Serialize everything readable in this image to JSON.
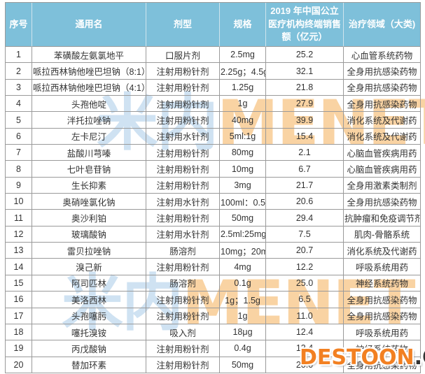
{
  "chart_data": {
    "type": "table",
    "title": "2019 年中国公立医疗机构终端销售额药品表",
    "columns": [
      "序号",
      "通用名",
      "剂型",
      "规格",
      "2019 年中国公立医疗机构终端销售额（亿元）",
      "治疗领域（大类)"
    ],
    "rows": [
      {
        "no": "1",
        "name": "苯磺酸左氨氯地平",
        "form": "口服片剂",
        "spec": "2.5mg",
        "sales": "25.2",
        "area": "心血管系统药物"
      },
      {
        "no": "2",
        "name": "哌拉西林钠他唑巴坦钠（8:1）",
        "form": "注射用粉针剂",
        "spec": "2.25g；4.5g",
        "sales": "32.1",
        "area": "全身用抗感染药物"
      },
      {
        "no": "3",
        "name": "哌拉西林钠他唑巴坦钠（4:1）",
        "form": "注射用粉针剂",
        "spec": "1.25g",
        "sales": "21.8",
        "area": "全身用抗感染药物"
      },
      {
        "no": "4",
        "name": "头孢他啶",
        "form": "注射用粉针剂",
        "spec": "1g",
        "sales": "27.9",
        "area": "全身用抗感染药物"
      },
      {
        "no": "5",
        "name": "泮托拉唑钠",
        "form": "注射用粉针剂",
        "spec": "40mg",
        "sales": "39.9",
        "area": "消化系统及代谢药"
      },
      {
        "no": "6",
        "name": "左卡尼汀",
        "form": "注射用水针剂",
        "spec": "5ml:1g",
        "sales": "15.4",
        "area": "消化系统及代谢药"
      },
      {
        "no": "7",
        "name": "盐酸川芎嗪",
        "form": "注射用粉针剂",
        "spec": "80mg",
        "sales": "2.1",
        "area": "心脑血管疾病用药"
      },
      {
        "no": "8",
        "name": "七叶皂苷钠",
        "form": "注射用粉针剂",
        "spec": "10mg",
        "sales": "6.7",
        "area": "心脑血管疾病用药"
      },
      {
        "no": "9",
        "name": "生长抑素",
        "form": "注射用粉针剂",
        "spec": "3mg",
        "sales": "21.7",
        "area": "全身用激素类制剂"
      },
      {
        "no": "10",
        "name": "奥硝唑氯化钠",
        "form": "注射用水针剂",
        "spec": "100ml：0.5g",
        "sales": "20.6",
        "area": "全身用抗感染药物"
      },
      {
        "no": "11",
        "name": "奥沙利铂",
        "form": "注射用粉针剂",
        "spec": "50mg",
        "sales": "29.4",
        "area": "抗肿瘤和免疫调节剂"
      },
      {
        "no": "12",
        "name": "玻璃酸钠",
        "form": "注射用水针剂",
        "spec": "2.5ml:25mg",
        "sales": "7.5",
        "area": "肌肉-骨骼系统"
      },
      {
        "no": "13",
        "name": "雷贝拉唑钠",
        "form": "肠溶剂",
        "spec": "10mg；20mg",
        "sales": "20.7",
        "area": "消化系统及代谢药"
      },
      {
        "no": "14",
        "name": "溴己新",
        "form": "注射用粉针剂",
        "spec": "4mg",
        "sales": "12.2",
        "area": "呼吸系统用药"
      },
      {
        "no": "15",
        "name": "阿司匹林",
        "form": "肠溶剂",
        "spec": "0.1g",
        "sales": "25.0",
        "area": "神经系统药物"
      },
      {
        "no": "16",
        "name": "美洛西林",
        "form": "注射用粉针剂",
        "spec": "1g；1.5g",
        "sales": "6.5",
        "area": "全身用抗感染药物"
      },
      {
        "no": "17",
        "name": "头孢噻肟",
        "form": "注射用粉针剂",
        "spec": "1g",
        "sales": "11.0",
        "area": "全身用抗感染药物"
      },
      {
        "no": "18",
        "name": "噻托溴铵",
        "form": "吸入剂",
        "spec": "18μg",
        "sales": "12.4",
        "area": "呼吸系统用药"
      },
      {
        "no": "19",
        "name": "丙戊酸钠",
        "form": "注射用粉针剂",
        "spec": "0.4g",
        "sales": "13.4",
        "area": "神经系统药物"
      },
      {
        "no": "20",
        "name": "替加环素",
        "form": "注射用粉针剂",
        "spec": "50mg",
        "sales": "20.0",
        "area": "全身用抗感染药物"
      }
    ]
  },
  "watermark": {
    "brand_cn": "米内",
    "brand_en": "MENET",
    "site_name": "DESTOON",
    "site_tld": ".COM"
  },
  "colors": {
    "header_bg": "#7ec0da",
    "header_text": "#ffffff",
    "border": "#9a9a9a",
    "cell_text": "#333333",
    "watermark_blue": "#cfe2f2",
    "watermark_peach": "#f9d3a3",
    "site_orange": "#f28022",
    "site_dark": "#323232"
  }
}
